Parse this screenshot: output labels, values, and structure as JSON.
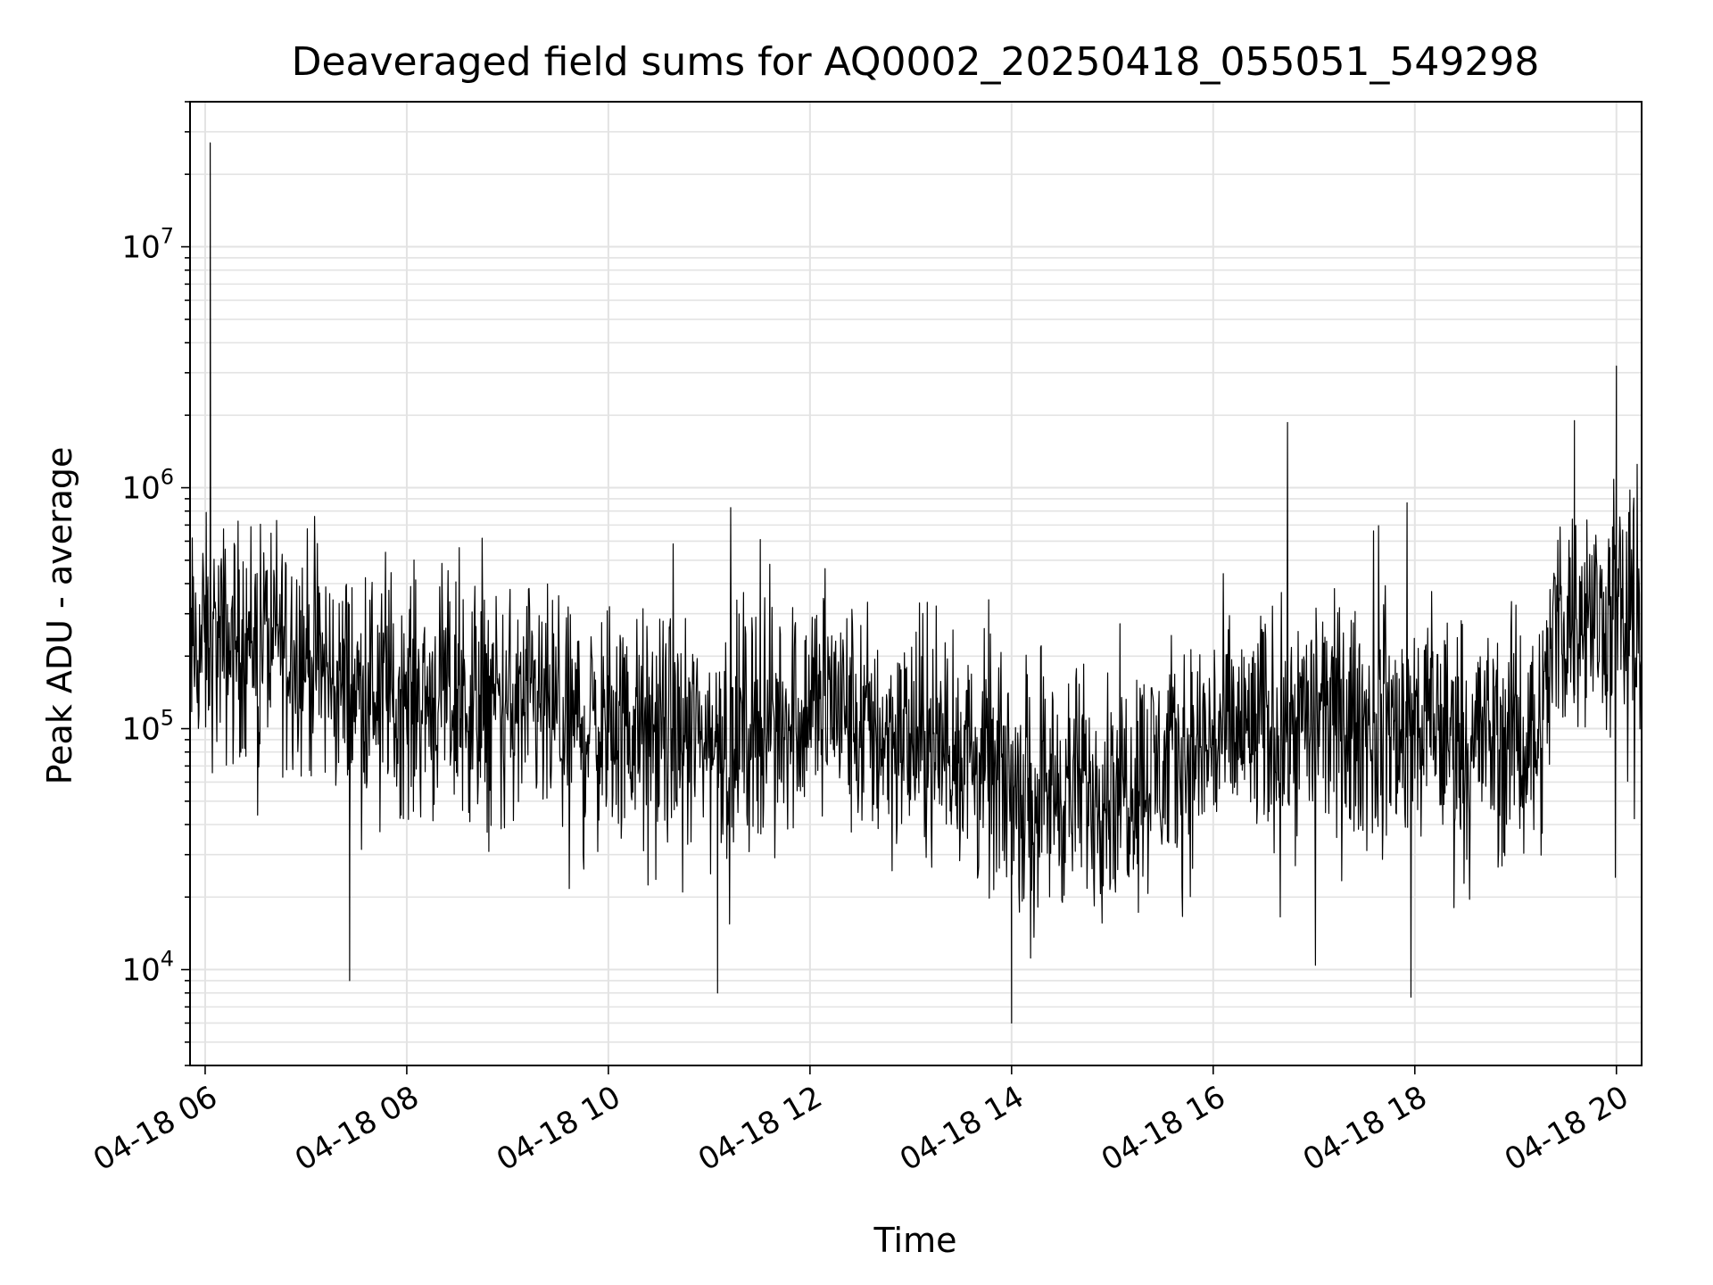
{
  "chart_data": {
    "type": "line",
    "title": "Deaveraged field sums for AQ0002_20250418_055051_549298",
    "xlabel": "Time",
    "ylabel": "Peak ADU - average",
    "y_scale": "log",
    "grid": true,
    "legend": "none",
    "line_color": "#000000",
    "xlim": [
      "2025-04-18 05:51",
      "2025-04-18 20:15"
    ],
    "ylim": [
      4000,
      40000000
    ],
    "x_ticks": [
      {
        "value": "2025-04-18 06:00",
        "label": "04-18 06"
      },
      {
        "value": "2025-04-18 08:00",
        "label": "04-18 08"
      },
      {
        "value": "2025-04-18 10:00",
        "label": "04-18 10"
      },
      {
        "value": "2025-04-18 12:00",
        "label": "04-18 12"
      },
      {
        "value": "2025-04-18 14:00",
        "label": "04-18 14"
      },
      {
        "value": "2025-04-18 16:00",
        "label": "04-18 16"
      },
      {
        "value": "2025-04-18 18:00",
        "label": "04-18 18"
      },
      {
        "value": "2025-04-18 20:00",
        "label": "04-18 20"
      }
    ],
    "y_ticks": [
      {
        "value": 10000,
        "base": "10",
        "exp": "4"
      },
      {
        "value": 100000,
        "base": "10",
        "exp": "5"
      },
      {
        "value": 1000000,
        "base": "10",
        "exp": "6"
      },
      {
        "value": 10000000,
        "base": "10",
        "exp": "7"
      }
    ],
    "series": [
      {
        "x": [
          "2025-04-18 05:51",
          "2025-04-18 06:00",
          "2025-04-18 06:03",
          "2025-04-18 06:15",
          "2025-04-18 06:30",
          "2025-04-18 06:45",
          "2025-04-18 07:00",
          "2025-04-18 07:15",
          "2025-04-18 07:26",
          "2025-04-18 07:30",
          "2025-04-18 07:45",
          "2025-04-18 08:00",
          "2025-04-18 08:30",
          "2025-04-18 09:00",
          "2025-04-18 09:30",
          "2025-04-18 10:00",
          "2025-04-18 10:30",
          "2025-04-18 11:00",
          "2025-04-18 11:05",
          "2025-04-18 11:30",
          "2025-04-18 12:00",
          "2025-04-18 12:05",
          "2025-04-18 12:30",
          "2025-04-18 13:00",
          "2025-04-18 13:30",
          "2025-04-18 13:55",
          "2025-04-18 14:00",
          "2025-04-18 14:30",
          "2025-04-18 15:00",
          "2025-04-18 15:30",
          "2025-04-18 15:50",
          "2025-04-18 16:00",
          "2025-04-18 16:30",
          "2025-04-18 17:00",
          "2025-04-18 17:30",
          "2025-04-18 18:00",
          "2025-04-18 18:30",
          "2025-04-18 19:00",
          "2025-04-18 19:15",
          "2025-04-18 19:25",
          "2025-04-18 19:35",
          "2025-04-18 19:50",
          "2025-04-18 20:00",
          "2025-04-18 20:15"
        ],
        "y": [
          200000,
          230000,
          27000000,
          220000,
          250000,
          240000,
          210000,
          160000,
          9000,
          140000,
          150000,
          140000,
          130000,
          120000,
          110000,
          100000,
          95000,
          90000,
          8000,
          110000,
          120000,
          150000,
          100000,
          90000,
          80000,
          60000,
          6000,
          55000,
          60000,
          70000,
          80000,
          90000,
          100000,
          110000,
          100000,
          100000,
          95000,
          90000,
          100000,
          300000,
          1900000,
          300000,
          3200000,
          280000
        ]
      }
    ]
  }
}
